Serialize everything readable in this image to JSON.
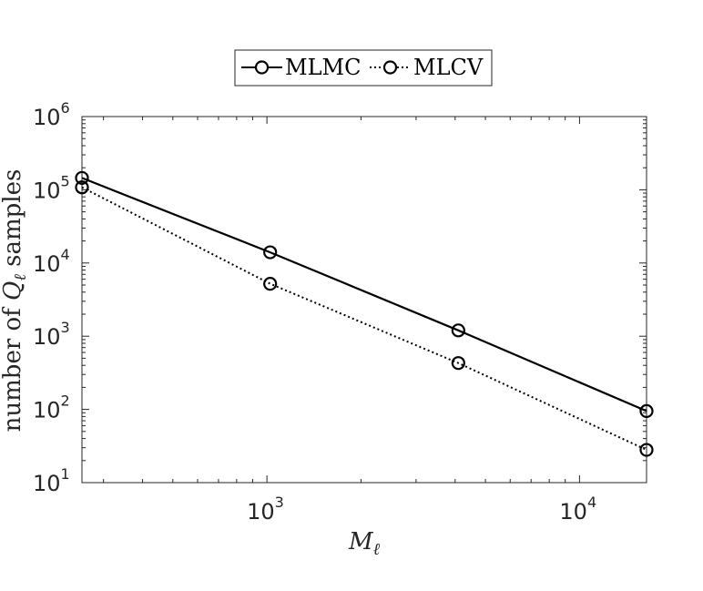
{
  "chart_data": {
    "type": "line",
    "x_scale": "log",
    "y_scale": "log",
    "xlabel": "M",
    "xlabel_subscript": "ℓ",
    "ylabel_prefix": "number of ",
    "ylabel_var": "Q",
    "ylabel_subscript": "ℓ",
    "ylabel_suffix": " samples",
    "xlim": [
      256,
      16384
    ],
    "ylim": [
      10,
      1000000
    ],
    "x_ticks": [
      {
        "value": 1000,
        "base": "10",
        "exp": "3"
      },
      {
        "value": 10000,
        "base": "10",
        "exp": "4"
      }
    ],
    "y_ticks": [
      {
        "value": 10,
        "base": "10",
        "exp": "1"
      },
      {
        "value": 100,
        "base": "10",
        "exp": "2"
      },
      {
        "value": 1000,
        "base": "10",
        "exp": "3"
      },
      {
        "value": 10000,
        "base": "10",
        "exp": "4"
      },
      {
        "value": 100000,
        "base": "10",
        "exp": "5"
      },
      {
        "value": 1000000,
        "base": "10",
        "exp": "6"
      }
    ],
    "legend_position": "top-center",
    "series": [
      {
        "name": "MLMC",
        "style": "solid",
        "color": "#000000",
        "x": [
          256,
          1024,
          4096,
          16384
        ],
        "y": [
          145000,
          14000,
          1200,
          95
        ]
      },
      {
        "name": "MLCV",
        "style": "dotted",
        "color": "#000000",
        "x": [
          256,
          1024,
          4096,
          16384
        ],
        "y": [
          108000,
          5200,
          430,
          28
        ]
      }
    ],
    "grid": false
  }
}
